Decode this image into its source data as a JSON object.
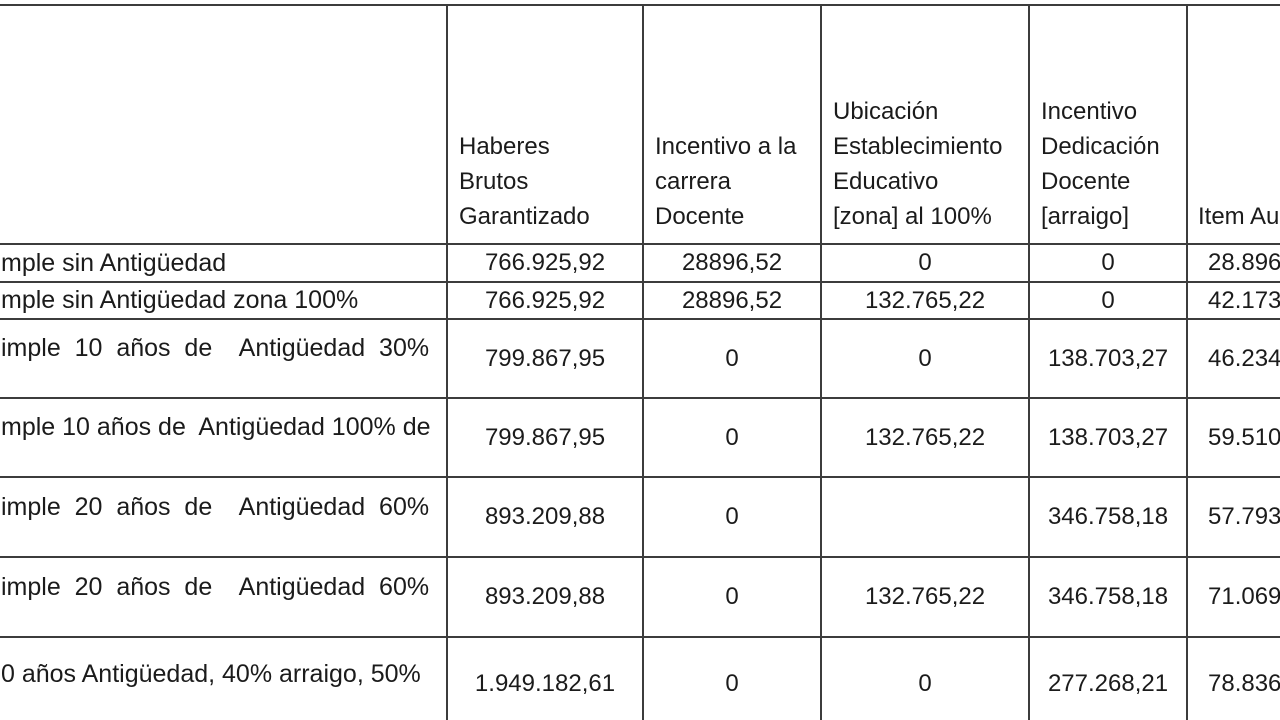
{
  "table": {
    "columns": {
      "corner": "",
      "haberes": "Haberes\nBrutos\nGarantizado",
      "incentivo_carrera": "Incentivo a la\ncarrera\nDocente",
      "ubicacion": "Ubicación\nEstablecimiento\nEducativo\n[zona] al 100%",
      "dedicacion": "Incentivo\nDedicación\nDocente\n[arraigo]",
      "item": "Item Au"
    },
    "rows": [
      {
        "label": "mple sin Antigüedad",
        "haberes": "766.925,92",
        "incentivo_carrera": "28896,52",
        "ubicacion": "0",
        "dedicacion": "0",
        "item": "28.896"
      },
      {
        "label": "mple sin Antigüedad zona 100%",
        "haberes": "766.925,92",
        "incentivo_carrera": "28896,52",
        "ubicacion": "132.765,22",
        "dedicacion": "0",
        "item": "42.173"
      },
      {
        "label": "imple  10  años  de    Antigüedad  30%",
        "haberes": "799.867,95",
        "incentivo_carrera": "0",
        "ubicacion": "0",
        "dedicacion": "138.703,27",
        "item": "46.234"
      },
      {
        "label": "mple 10 años de  Antigüedad 100% de",
        "haberes": "799.867,95",
        "incentivo_carrera": "0",
        "ubicacion": "132.765,22",
        "dedicacion": "138.703,27",
        "item": "59.510"
      },
      {
        "label": "imple  20  años  de    Antigüedad  60%",
        "haberes": "893.209,88",
        "incentivo_carrera": "0",
        "ubicacion": "",
        "dedicacion": "346.758,18",
        "item": "57.793"
      },
      {
        "label": "imple  20  años  de    Antigüedad  60%",
        "haberes": "893.209,88",
        "incentivo_carrera": "0",
        "ubicacion": "132.765,22",
        "dedicacion": "346.758,18",
        "item": "71.069"
      },
      {
        "label": "0 años Antigüedad, 40% arraigo, 50%",
        "haberes": "1.949.182,61",
        "incentivo_carrera": "0",
        "ubicacion": "0",
        "dedicacion": "277.268,21",
        "item": "78.836"
      }
    ]
  }
}
